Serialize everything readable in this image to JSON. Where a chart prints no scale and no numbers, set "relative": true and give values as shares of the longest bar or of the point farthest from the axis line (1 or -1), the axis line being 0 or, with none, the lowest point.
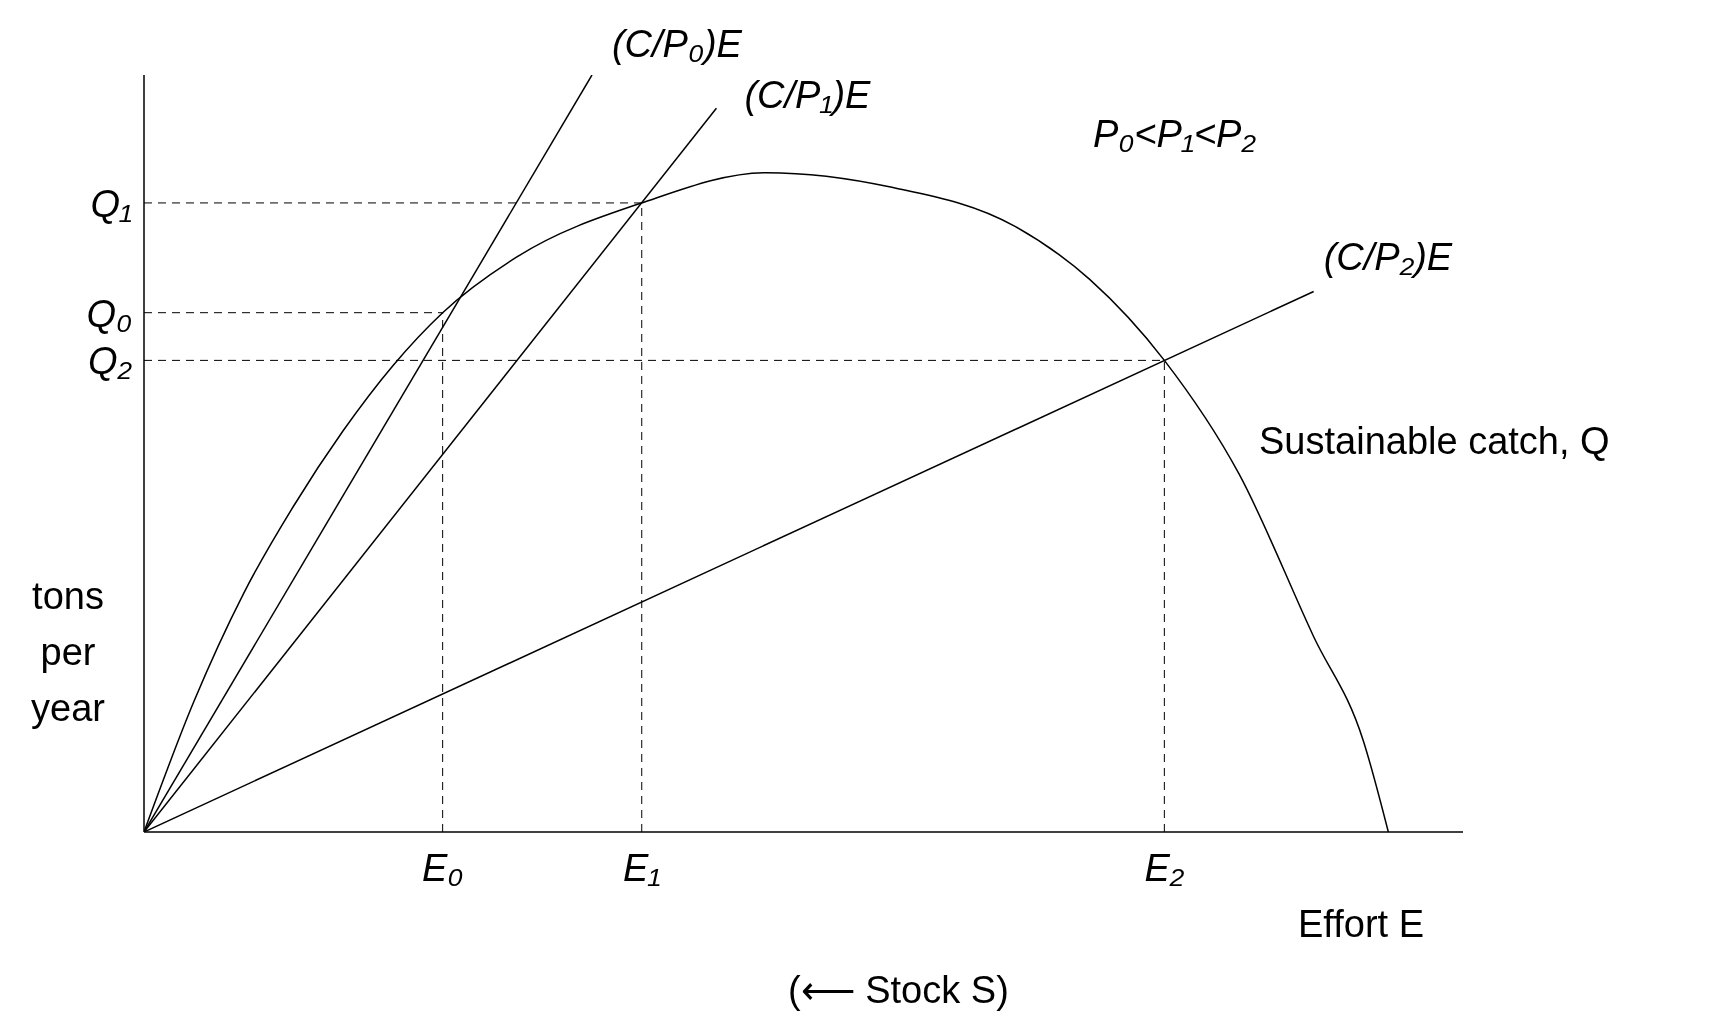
{
  "chart_data": {
    "type": "line",
    "relative": true,
    "xlabel": "Effort E",
    "ylabel": "tons per year",
    "categories": [
      null,
      null,
      null,
      null,
      null,
      null,
      null,
      null,
      null,
      null,
      null,
      null,
      "E₀",
      null,
      null,
      null,
      null,
      null,
      null,
      null,
      "E₁",
      null,
      null,
      null,
      null,
      null,
      null,
      null,
      null,
      null,
      null,
      null,
      null,
      null,
      null,
      null,
      null,
      null,
      null,
      null,
      null,
      "E₂",
      null,
      null,
      null,
      null,
      null,
      null,
      null,
      null,
      null,
      null,
      null,
      null
    ],
    "series": [
      {
        "name": "Sustainable catch, Q",
        "color": "#000000",
        "values": [
          0,
          null,
          0.172,
          null,
          0.315,
          null,
          0.43,
          null,
          0.53,
          null,
          0.616,
          null,
          0.686,
          null,
          null,
          0.76,
          null,
          null,
          null,
          null,
          0.831,
          null,
          null,
          null,
          null,
          0.871,
          null,
          null,
          null,
          null,
          0.852,
          null,
          null,
          null,
          null,
          0.8,
          null,
          null,
          0.73,
          null,
          null,
          0.623,
          null,
          null,
          0.473,
          null,
          null,
          0.258,
          null,
          0.12,
          0,
          null,
          null,
          null
        ]
      },
      {
        "name": "(C/P₀)E",
        "color": "#000000",
        "values": [
          0,
          null,
          null,
          null,
          null,
          null,
          null,
          null,
          null,
          null,
          null,
          null,
          null,
          null,
          null,
          null,
          null,
          null,
          1.0,
          null,
          null,
          null,
          null,
          null,
          null,
          null,
          null,
          null,
          null,
          null,
          null,
          null,
          null,
          null,
          null,
          null,
          null,
          null,
          null,
          null,
          null,
          null,
          null,
          null,
          null,
          null,
          null,
          null,
          null,
          null,
          null,
          null,
          null,
          null
        ]
      },
      {
        "name": "(C/P₁)E",
        "color": "#000000",
        "values": [
          0,
          null,
          null,
          null,
          null,
          null,
          null,
          null,
          null,
          null,
          null,
          null,
          null,
          null,
          null,
          null,
          null,
          null,
          null,
          null,
          null,
          null,
          null,
          0.956,
          null,
          null,
          null,
          null,
          null,
          null,
          null,
          null,
          null,
          null,
          null,
          null,
          null,
          null,
          null,
          null,
          null,
          null,
          null,
          null,
          null,
          null,
          null,
          null,
          null,
          null,
          null,
          null,
          null,
          null
        ]
      },
      {
        "name": "(C/P₂)E",
        "color": "#000000",
        "values": [
          0,
          null,
          null,
          null,
          null,
          null,
          null,
          null,
          null,
          null,
          null,
          null,
          null,
          null,
          null,
          null,
          null,
          null,
          null,
          null,
          null,
          null,
          null,
          null,
          null,
          null,
          null,
          null,
          null,
          null,
          null,
          null,
          null,
          null,
          null,
          null,
          null,
          null,
          null,
          null,
          null,
          null,
          null,
          null,
          null,
          null,
          null,
          0.714,
          null,
          null,
          null,
          null,
          null,
          null
        ]
      }
    ],
    "ref_lines": [
      {
        "axis": "y",
        "value": 0.686,
        "label": "Q₀",
        "line_style": "dashed"
      },
      {
        "axis": "y",
        "value": 0.831,
        "label": "Q₁",
        "line_style": "dashed"
      },
      {
        "axis": "y",
        "value": 0.623,
        "label": "Q₂",
        "line_style": "dashed"
      },
      {
        "axis": "x",
        "value": "E₀",
        "line_style": "dashed"
      },
      {
        "axis": "x",
        "value": "E₁",
        "line_style": "dashed"
      },
      {
        "axis": "x",
        "value": "E₂",
        "line_style": "dashed"
      }
    ],
    "annotations": [
      "P₀<P₁<P₂",
      "(⟵ Stock S)"
    ],
    "grid": false,
    "legend": false,
    "marker": "none",
    "line_style": "solid"
  }
}
